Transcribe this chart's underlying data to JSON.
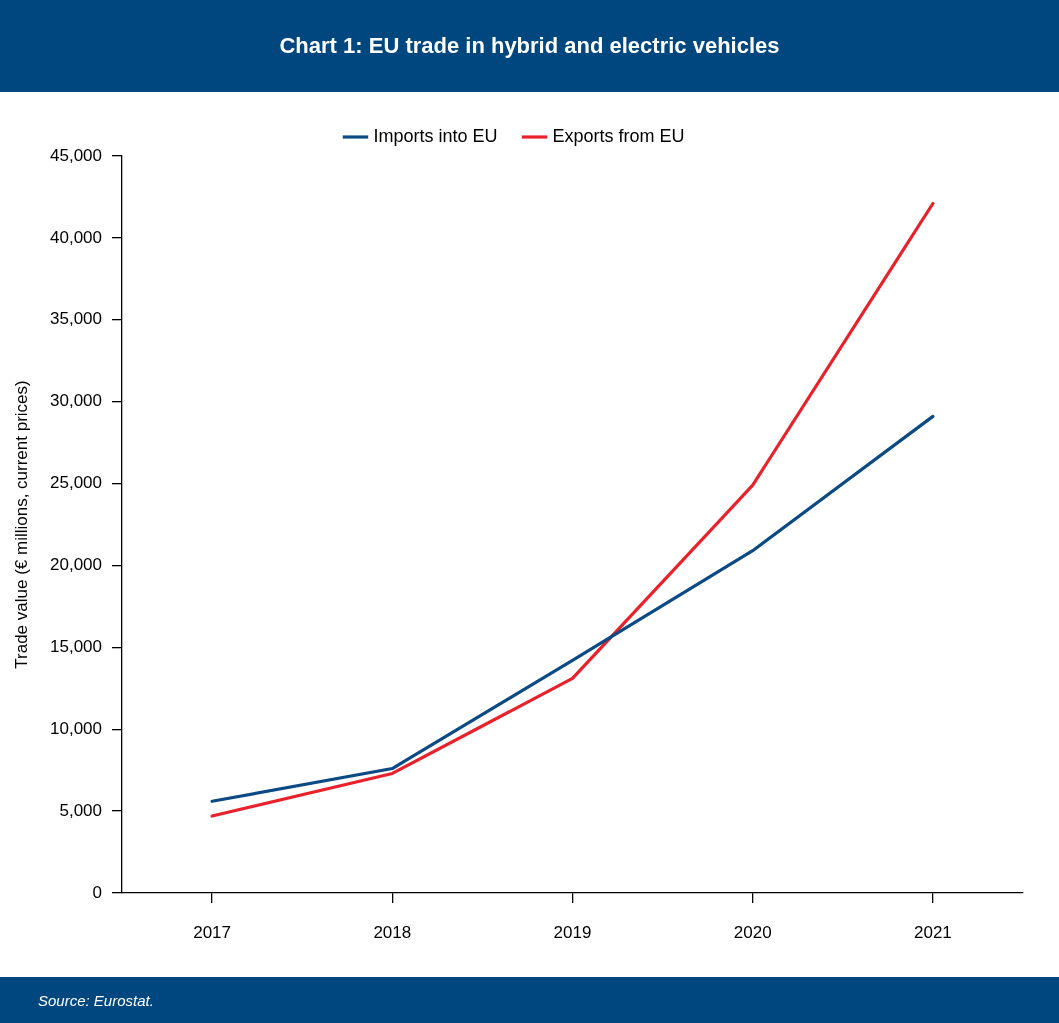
{
  "chart_data": {
    "type": "line",
    "title": "Chart 1: EU trade in hybrid and electric vehicles",
    "ylabel": "Trade value (€ millions, current prices)",
    "categories": [
      "2017",
      "2018",
      "2019",
      "2020",
      "2021"
    ],
    "series": [
      {
        "name": "Imports into EU",
        "color": "#0b4a85",
        "values": [
          5600,
          7600,
          14200,
          20900,
          29100
        ]
      },
      {
        "name": "Exports from EU",
        "color": "#e8212b",
        "values": [
          4700,
          7300,
          13100,
          24900,
          42100
        ]
      }
    ],
    "ylim": [
      0,
      45000
    ],
    "yticks": [
      {
        "value": 0,
        "label": "0"
      },
      {
        "value": 5000,
        "label": "5,000"
      },
      {
        "value": 10000,
        "label": "10,000"
      },
      {
        "value": 15000,
        "label": "15,000"
      },
      {
        "value": 20000,
        "label": "20,000"
      },
      {
        "value": 25000,
        "label": "25,000"
      },
      {
        "value": 30000,
        "label": "30,000"
      },
      {
        "value": 35000,
        "label": "35,000"
      },
      {
        "value": 40000,
        "label": "40,000"
      },
      {
        "value": 45000,
        "label": "45,000"
      }
    ],
    "grid": false,
    "legend": "top",
    "marker": "none",
    "line_style": "solid",
    "annotations": [
      "Source: Eurostat."
    ]
  }
}
